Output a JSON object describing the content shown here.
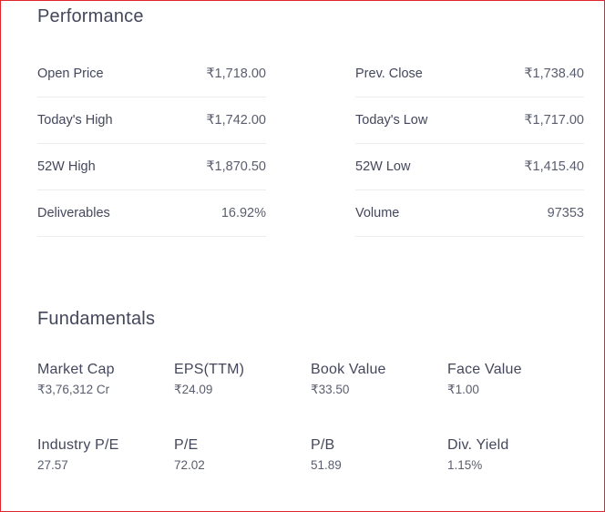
{
  "performance": {
    "title": "Performance",
    "left": [
      {
        "label": "Open Price",
        "value": "₹1,718.00"
      },
      {
        "label": "Today's High",
        "value": "₹1,742.00"
      },
      {
        "label": "52W High",
        "value": "₹1,870.50"
      },
      {
        "label": "Deliverables",
        "value": "16.92%"
      }
    ],
    "right": [
      {
        "label": "Prev. Close",
        "value": "₹1,738.40"
      },
      {
        "label": "Today's Low",
        "value": "₹1,717.00"
      },
      {
        "label": "52W Low",
        "value": "₹1,415.40"
      },
      {
        "label": "Volume",
        "value": "97353"
      }
    ]
  },
  "fundamentals": {
    "title": "Fundamentals",
    "rows": [
      [
        {
          "label": "Market Cap",
          "value": "₹3,76,312 Cr"
        },
        {
          "label": "EPS(TTM)",
          "value": "₹24.09"
        },
        {
          "label": "Book Value",
          "value": "₹33.50"
        },
        {
          "label": "Face Value",
          "value": "₹1.00"
        }
      ],
      [
        {
          "label": "Industry P/E",
          "value": "27.57"
        },
        {
          "label": "P/E",
          "value": "72.02"
        },
        {
          "label": "P/B",
          "value": "51.89"
        },
        {
          "label": "Div. Yield",
          "value": "1.15%"
        }
      ]
    ]
  },
  "colors": {
    "border": "#e0262c",
    "label": "#44475b",
    "value": "#5a5d6e",
    "divider": "#ececec"
  }
}
